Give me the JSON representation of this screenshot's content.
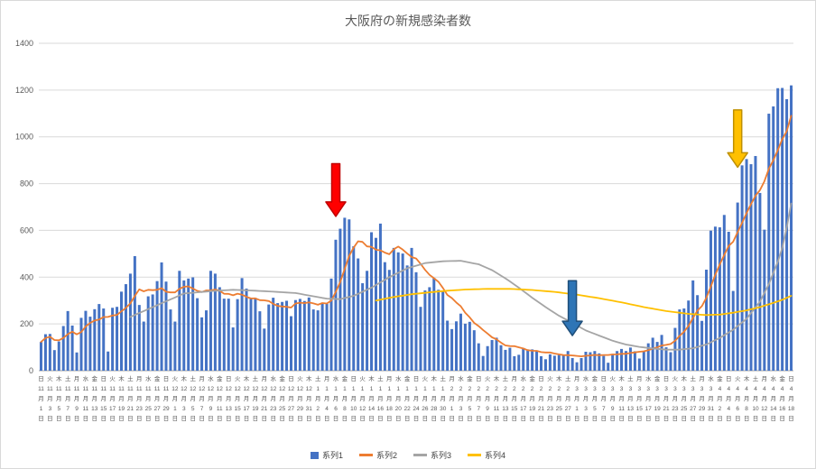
{
  "chart": {
    "title": "大阪府の新規感染者数",
    "legend": [
      {
        "label": "系列1",
        "type": "bar",
        "color": "#4472C4"
      },
      {
        "label": "系列2",
        "type": "line",
        "color": "#ED7D31"
      },
      {
        "label": "系列3",
        "type": "line",
        "color": "#A5A5A5"
      },
      {
        "label": "系列4",
        "type": "line",
        "color": "#FFC000"
      }
    ]
  },
  "chart_data": {
    "type": "combo",
    "title": "大阪府の新規感染者数",
    "x_axis": {
      "start": {
        "month": 11,
        "day": 1,
        "weekday": "日"
      },
      "months": [
        {
          "month": 11,
          "days": 30
        },
        {
          "month": 12,
          "days": 31
        },
        {
          "month": 1,
          "days": 31
        },
        {
          "month": 2,
          "days": 28
        },
        {
          "month": 3,
          "days": 31
        },
        {
          "month": 4,
          "days": 18
        }
      ],
      "weekday_cycle": [
        "日",
        "月",
        "火",
        "水",
        "木",
        "金",
        "土"
      ],
      "label_every_n_days": 2,
      "date_format": "{m}月{d}日"
    },
    "y_axis": {
      "min": 0,
      "max": 1400,
      "tick_step": 200,
      "ticks": [
        0,
        200,
        400,
        600,
        800,
        1000,
        1200,
        1400
      ],
      "grid": true
    },
    "series": [
      {
        "name": "系列1",
        "type": "bar",
        "color": "#4472C4",
        "values": [
          123,
          156,
          157,
          88,
          125,
          191,
          255,
          193,
          78,
          226,
          256,
          231,
          263,
          285,
          266,
          82,
          269,
          273,
          338,
          370,
          415,
          490,
          281,
          210,
          318,
          326,
          383,
          463,
          381,
          262,
          210,
          427,
          386,
          394,
          399,
          310,
          228,
          258,
          427,
          415,
          357,
          308,
          308,
          185,
          306,
          396,
          351,
          309,
          311,
          254,
          180,
          283,
          312,
          289,
          294,
          299,
          233,
          302,
          307,
          298,
          313,
          262,
          258,
          286,
          286,
          394,
          560,
          607,
          654,
          647,
          532,
          480,
          374,
          427,
          592,
          568,
          629,
          464,
          431,
          525,
          506,
          501,
          450,
          525,
          421,
          273,
          343,
          357,
          397,
          346,
          338,
          214,
          178,
          211,
          244,
          201,
          209,
          173,
          117,
          63,
          105,
          131,
          141,
          109,
          89,
          98,
          62,
          68,
          97,
          91,
          91,
          86,
          62,
          49,
          70,
          64,
          67,
          69,
          84,
          54,
          36,
          54,
          81,
          79,
          84,
          74,
          63,
          34,
          72,
          84,
          93,
          84,
          99,
          83,
          52,
          85,
          117,
          141,
          123,
          153,
          100,
          79,
          183,
          262,
          266,
          300,
          386,
          323,
          213,
          432,
          599,
          616,
          613,
          666,
          594,
          341,
          719,
          878,
          905,
          883,
          918,
          760,
          603,
          1099,
          1130,
          1208,
          1209,
          1161,
          1220
        ]
      },
      {
        "name": "系列2",
        "type": "line",
        "color": "#ED7D31",
        "derivation": "7-day trailing moving average of 系列1"
      },
      {
        "name": "系列3",
        "type": "line",
        "color": "#A5A5A5",
        "points": [
          [
            20,
            230
          ],
          [
            26,
            280
          ],
          [
            32,
            330
          ],
          [
            38,
            340
          ],
          [
            43,
            346
          ],
          [
            48,
            342
          ],
          [
            52,
            338
          ],
          [
            57,
            332
          ],
          [
            61,
            318
          ],
          [
            64,
            308
          ],
          [
            67,
            306
          ],
          [
            70,
            320
          ],
          [
            74,
            355
          ],
          [
            78,
            400
          ],
          [
            82,
            438
          ],
          [
            86,
            460
          ],
          [
            90,
            468
          ],
          [
            94,
            470
          ],
          [
            98,
            455
          ],
          [
            101,
            430
          ],
          [
            104,
            395
          ],
          [
            107,
            355
          ],
          [
            110,
            312
          ],
          [
            113,
            272
          ],
          [
            116,
            235
          ],
          [
            119,
            205
          ],
          [
            122,
            172
          ],
          [
            125,
            150
          ],
          [
            128,
            128
          ],
          [
            131,
            112
          ],
          [
            134,
            102
          ],
          [
            137,
            95
          ],
          [
            140,
            90
          ],
          [
            143,
            90
          ],
          [
            146,
            96
          ],
          [
            149,
            112
          ],
          [
            152,
            140
          ],
          [
            155,
            175
          ],
          [
            158,
            222
          ],
          [
            161,
            295
          ],
          [
            163,
            370
          ],
          [
            165,
            465
          ],
          [
            166,
            525
          ],
          [
            167,
            612
          ],
          [
            168,
            715
          ]
        ]
      },
      {
        "name": "系列4",
        "type": "line",
        "color": "#FFC000",
        "points": [
          [
            75,
            300
          ],
          [
            79,
            315
          ],
          [
            83,
            327
          ],
          [
            87,
            335
          ],
          [
            91,
            342
          ],
          [
            95,
            347
          ],
          [
            100,
            350
          ],
          [
            105,
            350
          ],
          [
            110,
            345
          ],
          [
            115,
            337
          ],
          [
            120,
            325
          ],
          [
            125,
            310
          ],
          [
            130,
            292
          ],
          [
            135,
            272
          ],
          [
            140,
            255
          ],
          [
            145,
            243
          ],
          [
            149,
            238
          ],
          [
            152,
            240
          ],
          [
            155,
            248
          ],
          [
            158,
            258
          ],
          [
            161,
            272
          ],
          [
            164,
            290
          ],
          [
            166,
            303
          ],
          [
            168,
            320
          ]
        ]
      }
    ],
    "annotations": [
      {
        "name": "red-arrow",
        "shape": "down-arrow",
        "day_index": 66,
        "tip_value": 660,
        "tail_value": 885,
        "fill": "#FF0000",
        "stroke": "#C00000"
      },
      {
        "name": "blue-arrow",
        "shape": "down-arrow",
        "day_index": 119,
        "tip_value": 150,
        "tail_value": 385,
        "fill": "#2E75B6",
        "stroke": "#1F4E79"
      },
      {
        "name": "yellow-arrow",
        "shape": "down-arrow",
        "day_index": 156,
        "tip_value": 870,
        "tail_value": 1115,
        "fill": "#FFC000",
        "stroke": "#BF9000"
      }
    ]
  }
}
